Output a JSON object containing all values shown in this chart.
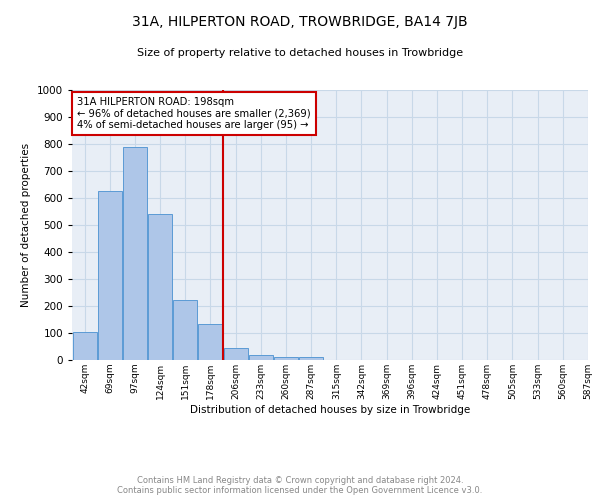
{
  "title": "31A, HILPERTON ROAD, TROWBRIDGE, BA14 7JB",
  "subtitle": "Size of property relative to detached houses in Trowbridge",
  "xlabel": "Distribution of detached houses by size in Trowbridge",
  "ylabel": "Number of detached properties",
  "footer_line1": "Contains HM Land Registry data © Crown copyright and database right 2024.",
  "footer_line2": "Contains public sector information licensed under the Open Government Licence v3.0.",
  "bins": [
    "42sqm",
    "69sqm",
    "97sqm",
    "124sqm",
    "151sqm",
    "178sqm",
    "206sqm",
    "233sqm",
    "260sqm",
    "287sqm",
    "315sqm",
    "342sqm",
    "369sqm",
    "396sqm",
    "424sqm",
    "451sqm",
    "478sqm",
    "505sqm",
    "533sqm",
    "560sqm",
    "587sqm"
  ],
  "bar_values": [
    103,
    627,
    790,
    540,
    222,
    135,
    44,
    17,
    10,
    10,
    0,
    0,
    0,
    0,
    0,
    0,
    0,
    0,
    0,
    0
  ],
  "bar_color": "#aec6e8",
  "bar_edge_color": "#5b9bd5",
  "grid_color": "#c8d8e8",
  "bg_color": "#e8eef6",
  "annotation_text_line1": "31A HILPERTON ROAD: 198sqm",
  "annotation_text_line2": "← 96% of detached houses are smaller (2,369)",
  "annotation_text_line3": "4% of semi-detached houses are larger (95) →",
  "annotation_box_color": "#ffffff",
  "annotation_box_edge": "#cc0000",
  "vline_color": "#cc0000",
  "vline_x": 5.5,
  "ylim": [
    0,
    1000
  ],
  "yticks": [
    0,
    100,
    200,
    300,
    400,
    500,
    600,
    700,
    800,
    900,
    1000
  ]
}
